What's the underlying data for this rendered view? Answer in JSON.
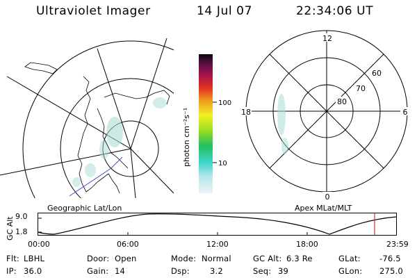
{
  "header": {
    "title": "Ultraviolet Imager",
    "date": "14 Jul 07",
    "time": "22:34:06 UT"
  },
  "colorbar": {
    "unit_label": "photon cm⁻²s⁻¹",
    "ticks": [
      "100",
      "10"
    ]
  },
  "polar_plot": {
    "hour_labels": [
      "12",
      "18",
      "6",
      "0"
    ],
    "lat_labels": [
      "60",
      "70",
      "80"
    ]
  },
  "map_labels": {
    "left": "Geographic Lat/Lon",
    "right": "Apex MLat/MLT"
  },
  "altitude_plot": {
    "ylabel": "GC Alt",
    "yticks": [
      "9.0",
      "1.8"
    ],
    "xticks": [
      "00:00",
      "06:00",
      "12:00",
      "18:00",
      "23:59"
    ]
  },
  "footer": {
    "row1": [
      {
        "label": "Flt:",
        "value": "LBHL"
      },
      {
        "label": "Door:",
        "value": "Open"
      },
      {
        "label": "Mode:",
        "value": "Normal"
      },
      {
        "label": "GC Alt:",
        "value": "6.3 Re"
      },
      {
        "label": "GLat:",
        "value": "-76.5"
      }
    ],
    "row2": [
      {
        "label": "IP:",
        "value": "36.0"
      },
      {
        "label": "Gain:",
        "value": "14"
      },
      {
        "label": "Dsp:",
        "value": "3.2"
      },
      {
        "label": "Seq:",
        "value": "39"
      },
      {
        "label": "GLon:",
        "value": "275.0"
      }
    ]
  },
  "colors": {
    "line": "#000000",
    "coast": "#000000",
    "aurora": "#a8dcd6",
    "marker": "#c83232",
    "track": "#4050d0"
  }
}
